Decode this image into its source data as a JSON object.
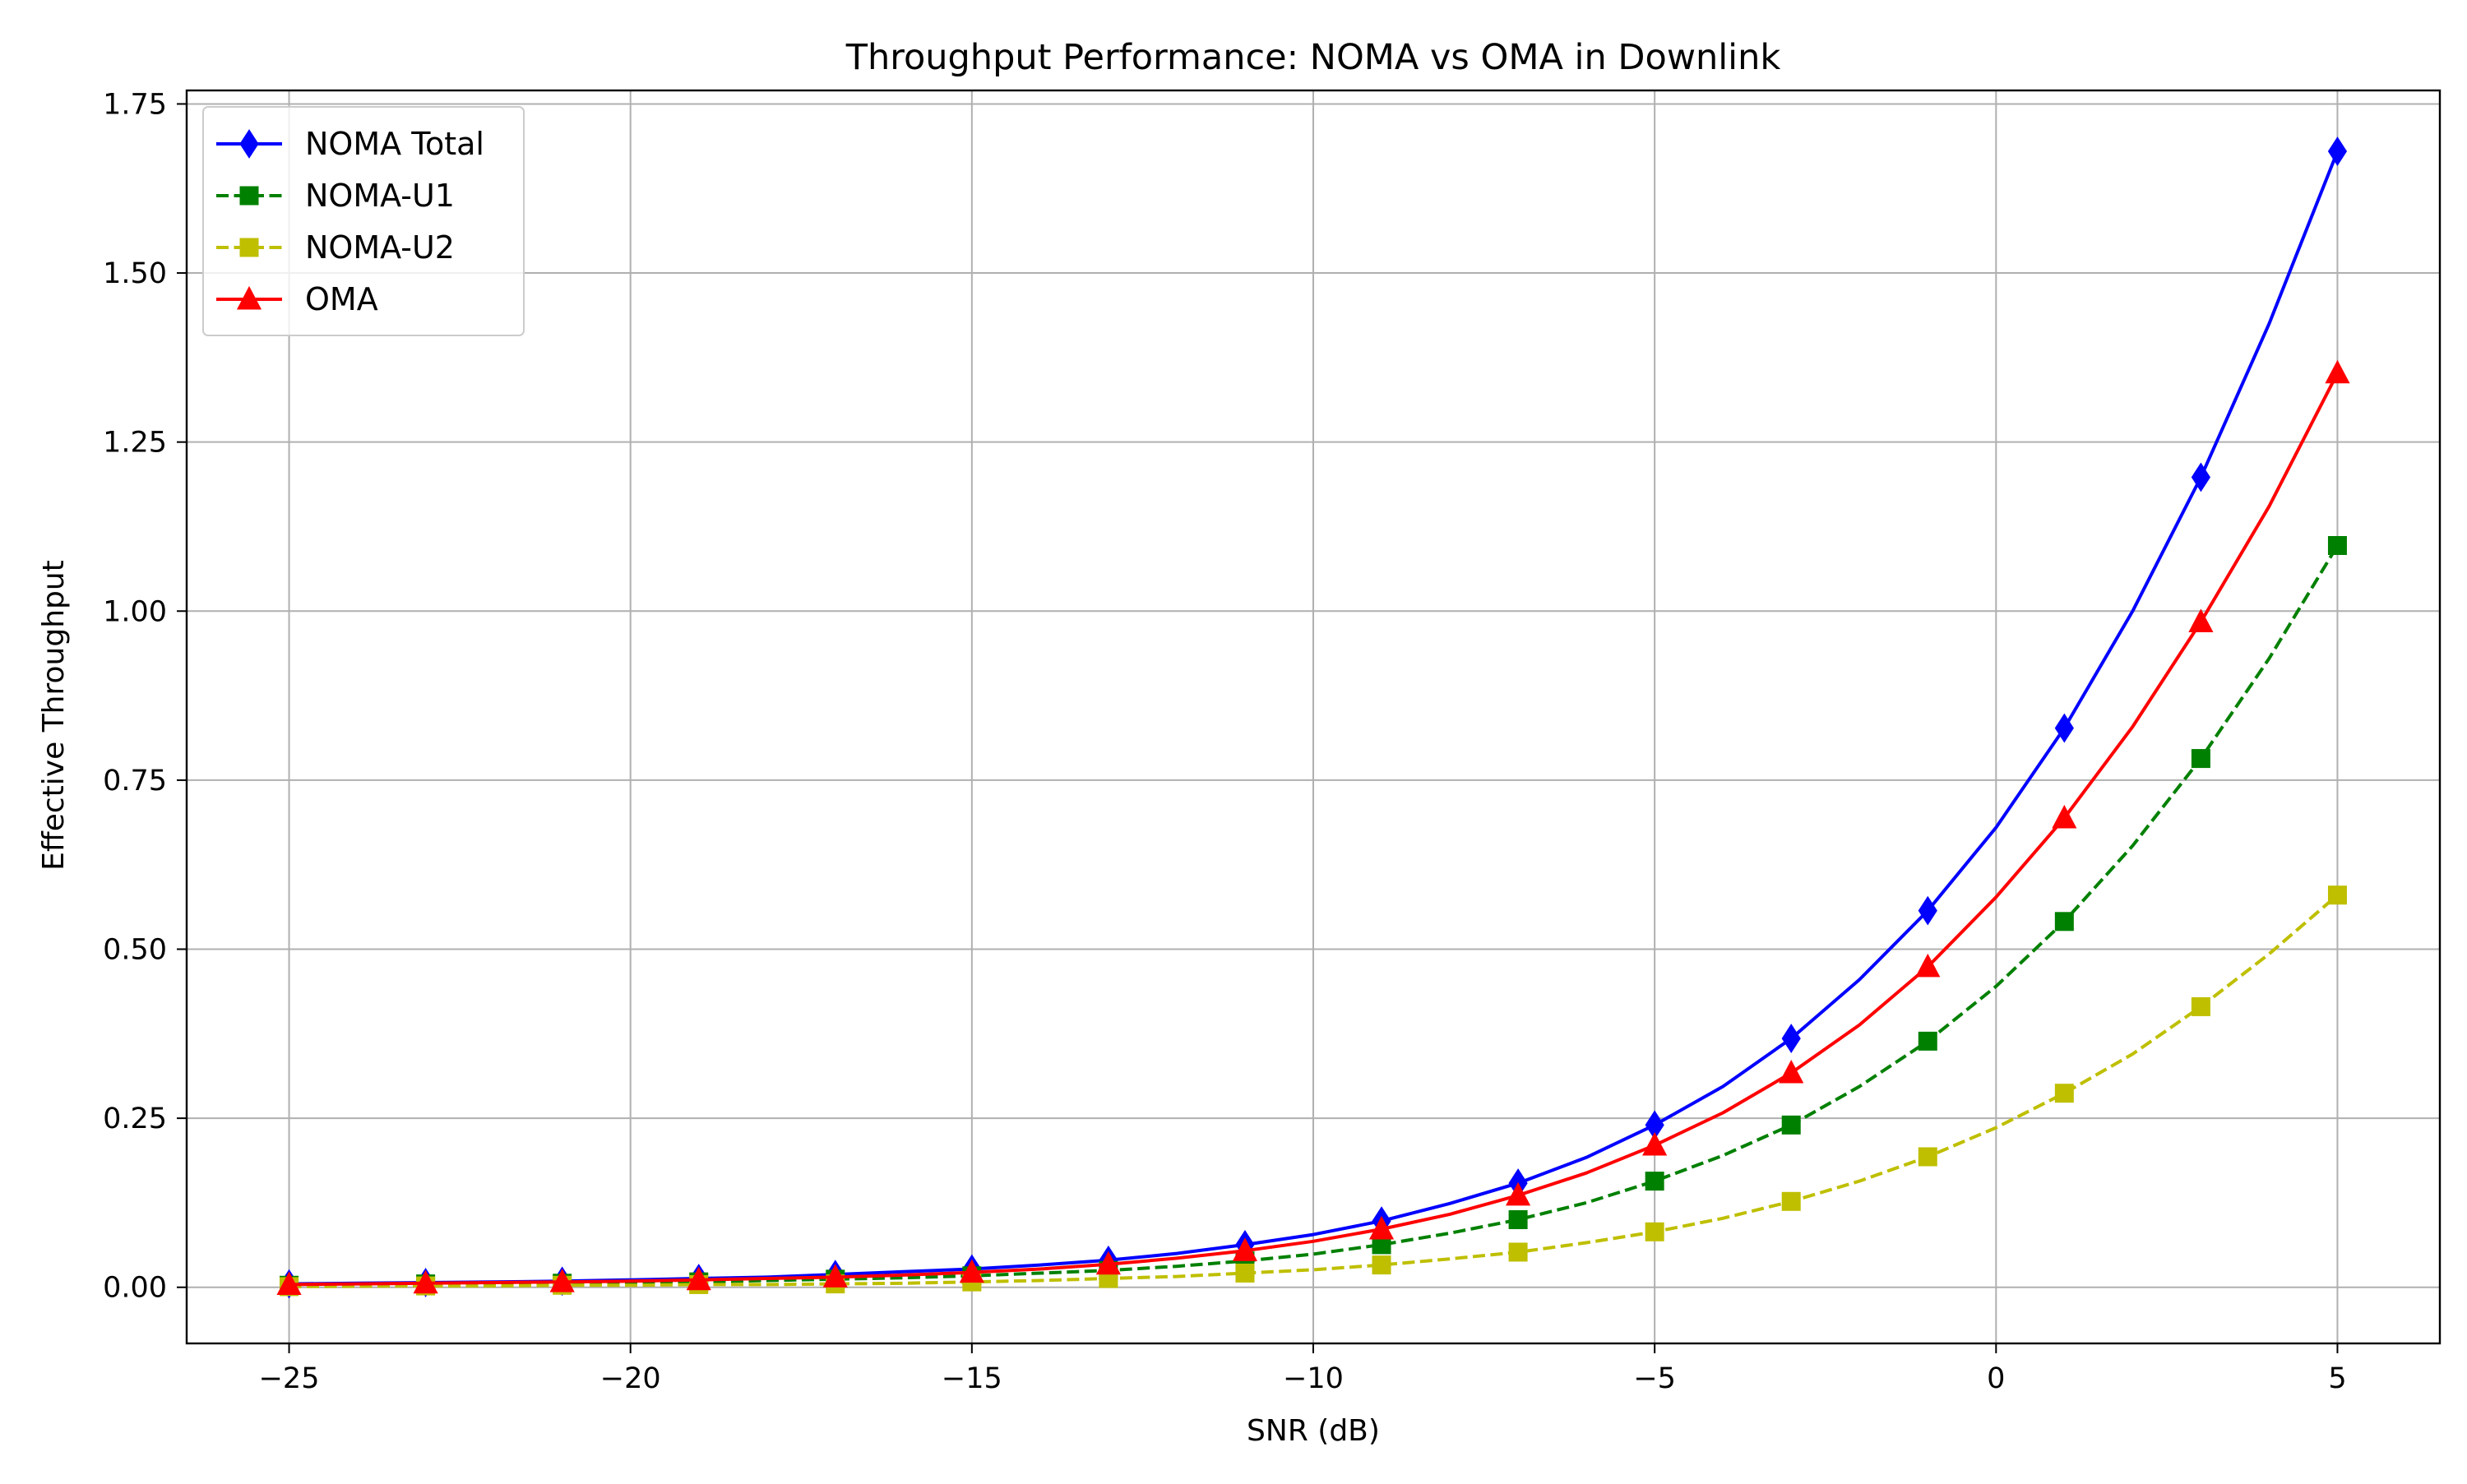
{
  "chart_data": {
    "type": "line",
    "title": "Throughput Performance: NOMA vs OMA in Downlink",
    "xlabel": "SNR (dB)",
    "ylabel": "Effective Throughput",
    "xlim": [
      -26.5,
      6.5
    ],
    "ylim": [
      -0.083,
      1.77
    ],
    "xticks": [
      -25,
      -20,
      -15,
      -10,
      -5,
      0,
      5
    ],
    "xtick_labels": [
      "−25",
      "−20",
      "−15",
      "−10",
      "−5",
      "0",
      "5"
    ],
    "yticks": [
      0.0,
      0.25,
      0.5,
      0.75,
      1.0,
      1.25,
      1.5,
      1.75
    ],
    "ytick_labels": [
      "0.00",
      "0.25",
      "0.50",
      "0.75",
      "1.00",
      "1.25",
      "1.50",
      "1.75"
    ],
    "grid": true,
    "legend_position": "top-left",
    "x": [
      -25,
      -24,
      -23,
      -22,
      -21,
      -20,
      -19,
      -18,
      -17,
      -16,
      -15,
      -14,
      -13,
      -12,
      -11,
      -10,
      -9,
      -8,
      -7,
      -6,
      -5,
      -4,
      -3,
      -2,
      -1,
      0,
      1,
      2,
      3,
      4,
      5
    ],
    "series": [
      {
        "name": "NOMA Total",
        "color": "#0000ff",
        "line_style": "solid",
        "marker": "diamond",
        "marker_every": 2,
        "values": [
          0.005,
          0.006,
          0.007,
          0.008,
          0.009,
          0.011,
          0.013,
          0.015,
          0.019,
          0.023,
          0.027,
          0.033,
          0.04,
          0.05,
          0.063,
          0.078,
          0.098,
          0.124,
          0.154,
          0.192,
          0.24,
          0.297,
          0.368,
          0.455,
          0.557,
          0.68,
          0.827,
          1.0,
          1.198,
          1.425,
          1.68
        ]
      },
      {
        "name": "NOMA-U1",
        "color": "#008000",
        "line_style": "dashed",
        "marker": "square",
        "marker_every": 2,
        "values": [
          0.003,
          0.004,
          0.005,
          0.005,
          0.006,
          0.007,
          0.008,
          0.01,
          0.012,
          0.014,
          0.017,
          0.021,
          0.025,
          0.031,
          0.039,
          0.049,
          0.063,
          0.08,
          0.1,
          0.125,
          0.157,
          0.195,
          0.24,
          0.297,
          0.364,
          0.445,
          0.541,
          0.653,
          0.782,
          0.93,
          1.097
        ]
      },
      {
        "name": "NOMA-U2",
        "color": "#bfbf00",
        "line_style": "dashed",
        "marker": "square",
        "marker_every": 2,
        "values": [
          0.001,
          0.0015,
          0.002,
          0.002,
          0.003,
          0.003,
          0.004,
          0.004,
          0.005,
          0.006,
          0.008,
          0.01,
          0.013,
          0.016,
          0.021,
          0.026,
          0.033,
          0.042,
          0.052,
          0.066,
          0.082,
          0.102,
          0.127,
          0.157,
          0.193,
          0.236,
          0.287,
          0.345,
          0.415,
          0.493,
          0.58
        ]
      },
      {
        "name": "OMA",
        "color": "#ff0000",
        "line_style": "solid",
        "marker": "triangle",
        "marker_every": 2,
        "values": [
          0.004,
          0.005,
          0.006,
          0.007,
          0.008,
          0.009,
          0.011,
          0.013,
          0.015,
          0.018,
          0.022,
          0.027,
          0.034,
          0.043,
          0.054,
          0.068,
          0.086,
          0.108,
          0.136,
          0.169,
          0.21,
          0.258,
          0.317,
          0.388,
          0.474,
          0.577,
          0.694,
          0.829,
          0.984,
          1.155,
          1.352
        ]
      }
    ]
  }
}
